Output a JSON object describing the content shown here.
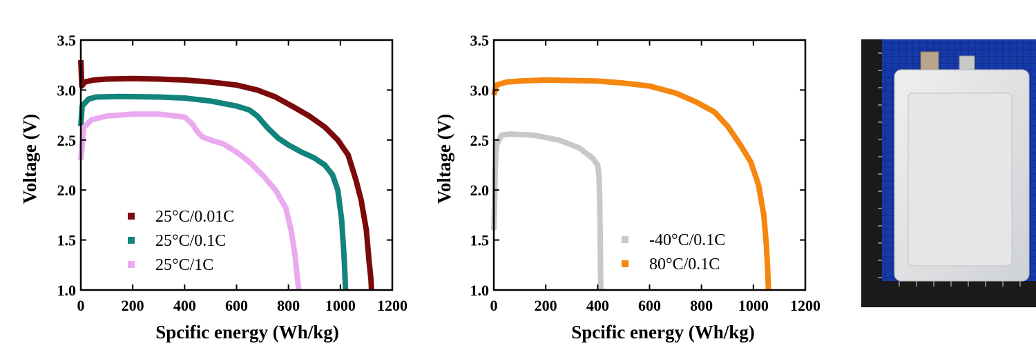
{
  "chart_data": [
    {
      "type": "scatter",
      "xlabel": "Spcific energy (Wh/kg)",
      "ylabel": "Voltage (V)",
      "xlim": [
        0,
        1200
      ],
      "ylim": [
        1.0,
        3.5
      ],
      "xticks": [
        0,
        200,
        400,
        600,
        800,
        1000,
        1200
      ],
      "yticks": [
        1.0,
        1.5,
        2.0,
        2.5,
        3.0,
        3.5
      ],
      "x_tick_labels": [
        "0",
        "200",
        "400",
        "600",
        "800",
        "1000",
        "1200"
      ],
      "y_tick_labels": [
        "1.0",
        "1.5",
        "2.0",
        "2.5",
        "3.0",
        "3.5"
      ],
      "legend_position": "bottom-left",
      "series": [
        {
          "name": "25°C/0.01C",
          "color": "#7b0a0a",
          "points": [
            [
              0,
              3.3
            ],
            [
              4,
              3.04
            ],
            [
              15,
              3.08
            ],
            [
              50,
              3.1
            ],
            [
              100,
              3.11
            ],
            [
              200,
              3.115
            ],
            [
              300,
              3.11
            ],
            [
              400,
              3.1
            ],
            [
              500,
              3.08
            ],
            [
              600,
              3.05
            ],
            [
              680,
              3.0
            ],
            [
              750,
              2.93
            ],
            [
              820,
              2.83
            ],
            [
              880,
              2.74
            ],
            [
              940,
              2.63
            ],
            [
              990,
              2.5
            ],
            [
              1030,
              2.35
            ],
            [
              1060,
              2.1
            ],
            [
              1080,
              1.9
            ],
            [
              1100,
              1.6
            ],
            [
              1110,
              1.3
            ],
            [
              1118,
              1.1
            ],
            [
              1120,
              1.0
            ]
          ]
        },
        {
          "name": "25°C/0.1C",
          "color": "#12847c",
          "points": [
            [
              0,
              2.64
            ],
            [
              5,
              2.84
            ],
            [
              30,
              2.91
            ],
            [
              60,
              2.93
            ],
            [
              150,
              2.935
            ],
            [
              300,
              2.93
            ],
            [
              400,
              2.92
            ],
            [
              500,
              2.89
            ],
            [
              600,
              2.84
            ],
            [
              650,
              2.8
            ],
            [
              680,
              2.74
            ],
            [
              720,
              2.62
            ],
            [
              760,
              2.52
            ],
            [
              800,
              2.45
            ],
            [
              850,
              2.38
            ],
            [
              900,
              2.32
            ],
            [
              940,
              2.25
            ],
            [
              970,
              2.15
            ],
            [
              990,
              2.0
            ],
            [
              1005,
              1.7
            ],
            [
              1015,
              1.3
            ],
            [
              1020,
              1.0
            ]
          ]
        },
        {
          "name": "25°C/1C",
          "color": "#eaaaf0",
          "points": [
            [
              0,
              2.3
            ],
            [
              6,
              2.48
            ],
            [
              10,
              2.62
            ],
            [
              40,
              2.7
            ],
            [
              100,
              2.74
            ],
            [
              200,
              2.76
            ],
            [
              300,
              2.76
            ],
            [
              400,
              2.73
            ],
            [
              430,
              2.66
            ],
            [
              450,
              2.58
            ],
            [
              470,
              2.53
            ],
            [
              500,
              2.5
            ],
            [
              550,
              2.46
            ],
            [
              600,
              2.38
            ],
            [
              650,
              2.28
            ],
            [
              700,
              2.15
            ],
            [
              750,
              2.0
            ],
            [
              790,
              1.82
            ],
            [
              810,
              1.6
            ],
            [
              825,
              1.35
            ],
            [
              835,
              1.1
            ],
            [
              840,
              1.0
            ]
          ]
        }
      ]
    },
    {
      "type": "scatter",
      "xlabel": "Spcific energy (Wh/kg)",
      "ylabel": "Voltage (V)",
      "xlim": [
        0,
        1200
      ],
      "ylim": [
        1.0,
        3.5
      ],
      "xticks": [
        0,
        200,
        400,
        600,
        800,
        1000,
        1200
      ],
      "yticks": [
        1.0,
        1.5,
        2.0,
        2.5,
        3.0,
        3.5
      ],
      "x_tick_labels": [
        "0",
        "200",
        "400",
        "600",
        "800",
        "1000",
        "1200"
      ],
      "y_tick_labels": [
        "1.0",
        "1.5",
        "2.0",
        "2.5",
        "3.0",
        "3.5"
      ],
      "legend_position": "bottom-center",
      "series": [
        {
          "name": "-40°C/0.1C",
          "color": "#c8c8c8",
          "points": [
            [
              0,
              1.6
            ],
            [
              3,
              1.85
            ],
            [
              5,
              2.2
            ],
            [
              10,
              2.45
            ],
            [
              30,
              2.55
            ],
            [
              60,
              2.56
            ],
            [
              150,
              2.55
            ],
            [
              250,
              2.5
            ],
            [
              330,
              2.42
            ],
            [
              380,
              2.32
            ],
            [
              400,
              2.25
            ],
            [
              405,
              2.15
            ],
            [
              408,
              1.9
            ],
            [
              410,
              1.5
            ],
            [
              412,
              1.0
            ]
          ]
        },
        {
          "name": "80°C/0.1C",
          "color": "#f5860f",
          "points": [
            [
              0,
              2.95
            ],
            [
              10,
              3.05
            ],
            [
              50,
              3.08
            ],
            [
              100,
              3.09
            ],
            [
              200,
              3.1
            ],
            [
              300,
              3.095
            ],
            [
              400,
              3.09
            ],
            [
              500,
              3.07
            ],
            [
              600,
              3.04
            ],
            [
              700,
              2.97
            ],
            [
              780,
              2.88
            ],
            [
              850,
              2.78
            ],
            [
              900,
              2.64
            ],
            [
              950,
              2.45
            ],
            [
              990,
              2.28
            ],
            [
              1020,
              2.05
            ],
            [
              1040,
              1.75
            ],
            [
              1050,
              1.45
            ],
            [
              1055,
              1.2
            ],
            [
              1058,
              1.0
            ]
          ]
        }
      ]
    }
  ]
}
